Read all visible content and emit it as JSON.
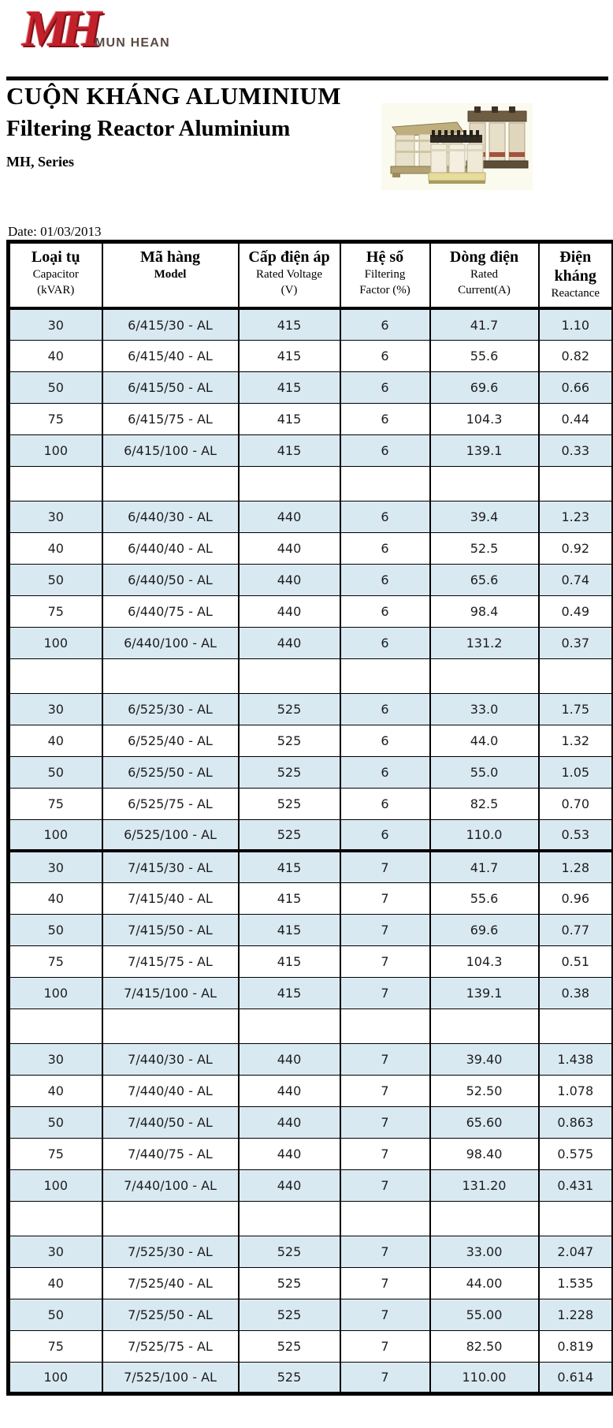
{
  "logo": {
    "monogram": "MH",
    "company": "MUN HEAN"
  },
  "header": {
    "title_vi": "CUỘN KHÁNG ALUMINIUM",
    "title_en": "Filtering Reactor Aluminium",
    "series": "MH, Series",
    "date": "Date: 01/03/2013",
    "product_image": "three-phase-filtering-reactors-photo"
  },
  "colors": {
    "row_highlight": "#d9e9f2",
    "logo_red": "#c2202a",
    "company_text": "#5a4a44",
    "table_border": "#000000"
  },
  "table": {
    "columns": [
      {
        "vi": "Loại tụ",
        "lines": [
          "Capacitor",
          "(kVAR)"
        ]
      },
      {
        "vi": "Mã hàng",
        "lines": [
          "Model"
        ],
        "en_bold": true
      },
      {
        "vi": "Cấp điện áp",
        "lines": [
          "Rated Voltage",
          "(V)"
        ]
      },
      {
        "vi": "Hệ số",
        "lines": [
          "Filtering",
          "Factor (%)"
        ]
      },
      {
        "vi": "Dòng điện",
        "lines": [
          "Rated",
          "Current(A)"
        ]
      },
      {
        "vi": "Điện kháng",
        "lines": [
          "Reactance"
        ]
      }
    ],
    "sections": [
      {
        "filtering_factor": "6",
        "rated_voltage": "415",
        "after": "gap",
        "rows": [
          {
            "kvar": "30",
            "model": "6/415/30 - AL",
            "voltage": "415",
            "factor": "6",
            "current": "41.7",
            "reactance": "1.10"
          },
          {
            "kvar": "40",
            "model": "6/415/40 - AL",
            "voltage": "415",
            "factor": "6",
            "current": "55.6",
            "reactance": "0.82"
          },
          {
            "kvar": "50",
            "model": "6/415/50 - AL",
            "voltage": "415",
            "factor": "6",
            "current": "69.6",
            "reactance": "0.66"
          },
          {
            "kvar": "75",
            "model": "6/415/75 - AL",
            "voltage": "415",
            "factor": "6",
            "current": "104.3",
            "reactance": "0.44"
          },
          {
            "kvar": "100",
            "model": "6/415/100 - AL",
            "voltage": "415",
            "factor": "6",
            "current": "139.1",
            "reactance": "0.33"
          }
        ]
      },
      {
        "filtering_factor": "6",
        "rated_voltage": "440",
        "after": "gap",
        "rows": [
          {
            "kvar": "30",
            "model": "6/440/30 - AL",
            "voltage": "440",
            "factor": "6",
            "current": "39.4",
            "reactance": "1.23"
          },
          {
            "kvar": "40",
            "model": "6/440/40 - AL",
            "voltage": "440",
            "factor": "6",
            "current": "52.5",
            "reactance": "0.92"
          },
          {
            "kvar": "50",
            "model": "6/440/50 - AL",
            "voltage": "440",
            "factor": "6",
            "current": "65.6",
            "reactance": "0.74"
          },
          {
            "kvar": "75",
            "model": "6/440/75 - AL",
            "voltage": "440",
            "factor": "6",
            "current": "98.4",
            "reactance": "0.49"
          },
          {
            "kvar": "100",
            "model": "6/440/100 - AL",
            "voltage": "440",
            "factor": "6",
            "current": "131.2",
            "reactance": "0.37"
          }
        ]
      },
      {
        "filtering_factor": "6",
        "rated_voltage": "525",
        "after": "none",
        "rows": [
          {
            "kvar": "30",
            "model": "6/525/30 - AL",
            "voltage": "525",
            "factor": "6",
            "current": "33.0",
            "reactance": "1.75"
          },
          {
            "kvar": "40",
            "model": "6/525/40 - AL",
            "voltage": "525",
            "factor": "6",
            "current": "44.0",
            "reactance": "1.32"
          },
          {
            "kvar": "50",
            "model": "6/525/50 - AL",
            "voltage": "525",
            "factor": "6",
            "current": "55.0",
            "reactance": "1.05"
          },
          {
            "kvar": "75",
            "model": "6/525/75 - AL",
            "voltage": "525",
            "factor": "6",
            "current": "82.5",
            "reactance": "0.70"
          },
          {
            "kvar": "100",
            "model": "6/525/100 - AL",
            "voltage": "525",
            "factor": "6",
            "current": "110.0",
            "reactance": "0.53"
          }
        ]
      },
      {
        "filtering_factor": "7",
        "rated_voltage": "415",
        "after": "gap",
        "rows": [
          {
            "kvar": "30",
            "model": "7/415/30 - AL",
            "voltage": "415",
            "factor": "7",
            "current": "41.7",
            "reactance": "1.28"
          },
          {
            "kvar": "40",
            "model": "7/415/40 - AL",
            "voltage": "415",
            "factor": "7",
            "current": "55.6",
            "reactance": "0.96"
          },
          {
            "kvar": "50",
            "model": "7/415/50 - AL",
            "voltage": "415",
            "factor": "7",
            "current": "69.6",
            "reactance": "0.77"
          },
          {
            "kvar": "75",
            "model": "7/415/75 - AL",
            "voltage": "415",
            "factor": "7",
            "current": "104.3",
            "reactance": "0.51"
          },
          {
            "kvar": "100",
            "model": "7/415/100 - AL",
            "voltage": "415",
            "factor": "7",
            "current": "139.1",
            "reactance": "0.38"
          }
        ]
      },
      {
        "filtering_factor": "7",
        "rated_voltage": "440",
        "after": "gap",
        "rows": [
          {
            "kvar": "30",
            "model": "7/440/30 - AL",
            "voltage": "440",
            "factor": "7",
            "current": "39.40",
            "reactance": "1.438"
          },
          {
            "kvar": "40",
            "model": "7/440/40 - AL",
            "voltage": "440",
            "factor": "7",
            "current": "52.50",
            "reactance": "1.078"
          },
          {
            "kvar": "50",
            "model": "7/440/50 - AL",
            "voltage": "440",
            "factor": "7",
            "current": "65.60",
            "reactance": "0.863"
          },
          {
            "kvar": "75",
            "model": "7/440/75 - AL",
            "voltage": "440",
            "factor": "7",
            "current": "98.40",
            "reactance": "0.575"
          },
          {
            "kvar": "100",
            "model": "7/440/100 - AL",
            "voltage": "440",
            "factor": "7",
            "current": "131.20",
            "reactance": "0.431"
          }
        ]
      },
      {
        "filtering_factor": "7",
        "rated_voltage": "525",
        "after": "none",
        "rows": [
          {
            "kvar": "30",
            "model": "7/525/30 - AL",
            "voltage": "525",
            "factor": "7",
            "current": "33.00",
            "reactance": "2.047"
          },
          {
            "kvar": "40",
            "model": "7/525/40 - AL",
            "voltage": "525",
            "factor": "7",
            "current": "44.00",
            "reactance": "1.535"
          },
          {
            "kvar": "50",
            "model": "7/525/50 - AL",
            "voltage": "525",
            "factor": "7",
            "current": "55.00",
            "reactance": "1.228"
          },
          {
            "kvar": "75",
            "model": "7/525/75 - AL",
            "voltage": "525",
            "factor": "7",
            "current": "82.50",
            "reactance": "0.819"
          },
          {
            "kvar": "100",
            "model": "7/525/100 - AL",
            "voltage": "525",
            "factor": "7",
            "current": "110.00",
            "reactance": "0.614"
          }
        ]
      }
    ]
  }
}
